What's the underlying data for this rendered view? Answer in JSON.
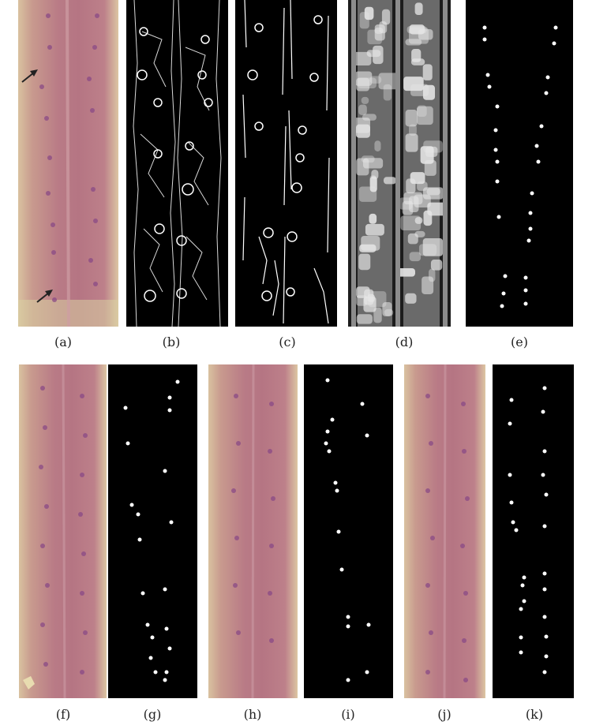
{
  "panels": [
    {
      "id": "a",
      "caption": "(a)",
      "kind": "microscopy-photo"
    },
    {
      "id": "b",
      "caption": "(b)",
      "kind": "edge-map-thin"
    },
    {
      "id": "c",
      "caption": "(c)",
      "kind": "edge-map-filtered"
    },
    {
      "id": "d",
      "caption": "(d)",
      "kind": "filter-response-map"
    },
    {
      "id": "e",
      "caption": "(e)",
      "kind": "binary-detection"
    },
    {
      "id": "f",
      "caption": "(f)",
      "kind": "microscopy-photo"
    },
    {
      "id": "g",
      "caption": "(g)",
      "kind": "binary-detection"
    },
    {
      "id": "h",
      "caption": "(h)",
      "kind": "microscopy-photo"
    },
    {
      "id": "i",
      "caption": "(i)",
      "kind": "binary-detection"
    },
    {
      "id": "j",
      "caption": "(j)",
      "kind": "microscopy-photo"
    },
    {
      "id": "k",
      "caption": "(k)",
      "kind": "binary-detection"
    }
  ],
  "colors": {
    "background": "#ffffff",
    "binary_background": "#000000",
    "binary_foreground": "#ffffff",
    "tissue_pink": "#b97b86",
    "spot_purple": "#8a4a86",
    "arrow": "#222222"
  }
}
